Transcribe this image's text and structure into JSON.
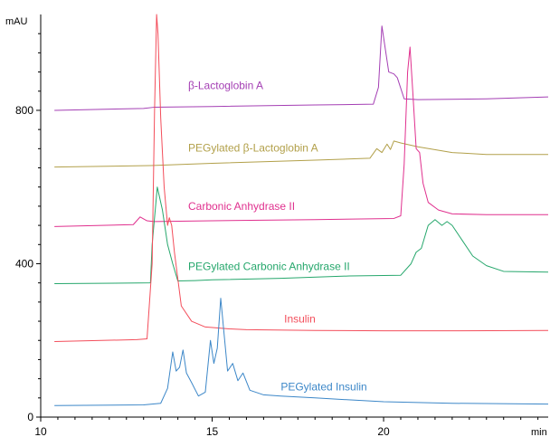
{
  "chart_data": {
    "type": "line",
    "title": "",
    "xlabel": "",
    "ylabel": "",
    "x_unit": "min",
    "y_unit": "mAU",
    "xlim": [
      10,
      24.8
    ],
    "ylim": [
      0,
      1050
    ],
    "x_ticks": [
      10,
      15,
      20
    ],
    "y_ticks": [
      0,
      400,
      800
    ],
    "x_tick_labels": [
      "10",
      "15",
      "20"
    ],
    "y_tick_labels": [
      "0",
      "400",
      "800"
    ],
    "grid": false,
    "legend": "none",
    "series": [
      {
        "name": "β-Lactoglobin A",
        "color": "#a43fb4",
        "label_at": [
          14.3,
          855
        ],
        "points": [
          [
            10.4,
            800
          ],
          [
            13.0,
            805
          ],
          [
            13.3,
            808
          ],
          [
            15,
            810
          ],
          [
            18,
            814
          ],
          [
            19.7,
            816
          ],
          [
            19.85,
            860
          ],
          [
            19.95,
            1020
          ],
          [
            20.05,
            960
          ],
          [
            20.15,
            900
          ],
          [
            20.3,
            895
          ],
          [
            20.4,
            885
          ],
          [
            20.6,
            830
          ],
          [
            21,
            828
          ],
          [
            23,
            830
          ],
          [
            24.8,
            835
          ]
        ]
      },
      {
        "name": "PEGylated β-Lactoglobin A",
        "color": "#b2a04a",
        "label_at": [
          14.3,
          692
        ],
        "points": [
          [
            10.4,
            652
          ],
          [
            13.2,
            656
          ],
          [
            15,
            662
          ],
          [
            18,
            670
          ],
          [
            19.6,
            675
          ],
          [
            19.8,
            700
          ],
          [
            19.95,
            690
          ],
          [
            20.1,
            712
          ],
          [
            20.2,
            698
          ],
          [
            20.3,
            720
          ],
          [
            20.5,
            715
          ],
          [
            21,
            705
          ],
          [
            22,
            690
          ],
          [
            23,
            685
          ],
          [
            24.8,
            685
          ]
        ]
      },
      {
        "name": "Carbonic Anhydrase II",
        "color": "#e0308e",
        "label_at": [
          14.3,
          540
        ],
        "points": [
          [
            10.4,
            497
          ],
          [
            12.7,
            502
          ],
          [
            12.9,
            522
          ],
          [
            13.1,
            512
          ],
          [
            13.3,
            510
          ],
          [
            15,
            512
          ],
          [
            18,
            515
          ],
          [
            20.3,
            518
          ],
          [
            20.5,
            525
          ],
          [
            20.6,
            660
          ],
          [
            20.7,
            900
          ],
          [
            20.77,
            965
          ],
          [
            20.85,
            850
          ],
          [
            20.95,
            700
          ],
          [
            21.05,
            690
          ],
          [
            21.15,
            610
          ],
          [
            21.3,
            560
          ],
          [
            21.6,
            540
          ],
          [
            22,
            530
          ],
          [
            23,
            528
          ],
          [
            24.8,
            528
          ]
        ]
      },
      {
        "name": "PEGylated Carbonic Anhydrase II",
        "color": "#26a76c",
        "label_at": [
          14.3,
          383
        ],
        "points": [
          [
            10.4,
            348
          ],
          [
            13.2,
            350
          ],
          [
            13.25,
            450
          ],
          [
            13.4,
            600
          ],
          [
            13.55,
            540
          ],
          [
            13.7,
            450
          ],
          [
            13.85,
            400
          ],
          [
            14.0,
            355
          ],
          [
            14.5,
            356
          ],
          [
            15,
            358
          ],
          [
            17,
            362
          ],
          [
            19,
            368
          ],
          [
            20.5,
            370
          ],
          [
            20.8,
            400
          ],
          [
            20.95,
            430
          ],
          [
            21.1,
            440
          ],
          [
            21.3,
            500
          ],
          [
            21.5,
            515
          ],
          [
            21.7,
            500
          ],
          [
            21.85,
            510
          ],
          [
            22.0,
            500
          ],
          [
            22.3,
            460
          ],
          [
            22.6,
            420
          ],
          [
            23,
            395
          ],
          [
            23.5,
            380
          ],
          [
            24.8,
            378
          ]
        ]
      },
      {
        "name": "Insulin",
        "color": "#f34e5b",
        "label_at": [
          17.1,
          246
        ],
        "points": [
          [
            10.4,
            197
          ],
          [
            12.8,
            202
          ],
          [
            13.1,
            204
          ],
          [
            13.25,
            400
          ],
          [
            13.32,
            800
          ],
          [
            13.38,
            1050
          ],
          [
            13.42,
            1000
          ],
          [
            13.5,
            780
          ],
          [
            13.6,
            600
          ],
          [
            13.7,
            500
          ],
          [
            13.75,
            520
          ],
          [
            13.82,
            500
          ],
          [
            13.9,
            430
          ],
          [
            14.1,
            290
          ],
          [
            14.4,
            250
          ],
          [
            14.8,
            235
          ],
          [
            15.5,
            230
          ],
          [
            16,
            228
          ],
          [
            18,
            226
          ],
          [
            20,
            225
          ],
          [
            22,
            225
          ],
          [
            24.8,
            226
          ]
        ]
      },
      {
        "name": "PEGylated Insulin",
        "color": "#3c87c8",
        "label_at": [
          17.0,
          70
        ],
        "points": [
          [
            10.4,
            30
          ],
          [
            13.0,
            32
          ],
          [
            13.5,
            36
          ],
          [
            13.7,
            75
          ],
          [
            13.85,
            170
          ],
          [
            13.95,
            120
          ],
          [
            14.05,
            130
          ],
          [
            14.15,
            175
          ],
          [
            14.25,
            115
          ],
          [
            14.4,
            90
          ],
          [
            14.6,
            55
          ],
          [
            14.8,
            65
          ],
          [
            14.95,
            200
          ],
          [
            15.05,
            140
          ],
          [
            15.15,
            180
          ],
          [
            15.25,
            310
          ],
          [
            15.35,
            215
          ],
          [
            15.45,
            120
          ],
          [
            15.6,
            140
          ],
          [
            15.75,
            95
          ],
          [
            15.9,
            115
          ],
          [
            16.1,
            70
          ],
          [
            16.5,
            58
          ],
          [
            17,
            55
          ],
          [
            18,
            50
          ],
          [
            20,
            40
          ],
          [
            22,
            36
          ],
          [
            24.8,
            34
          ]
        ]
      }
    ]
  }
}
